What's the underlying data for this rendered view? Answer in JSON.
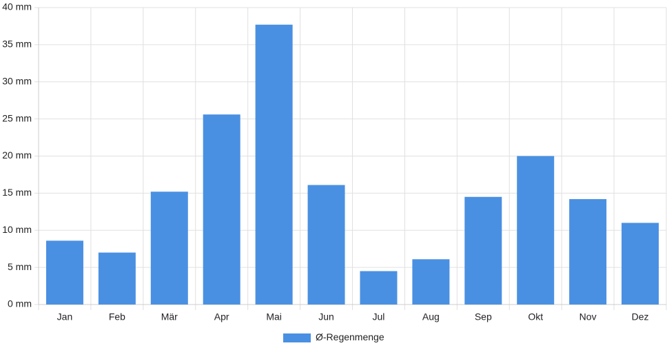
{
  "chart_data": {
    "type": "bar",
    "categories": [
      "Jan",
      "Feb",
      "Mär",
      "Apr",
      "Mai",
      "Jun",
      "Jul",
      "Aug",
      "Sep",
      "Okt",
      "Nov",
      "Dez"
    ],
    "series": [
      {
        "name": "Ø-Regenmenge",
        "color": "#4a90e2",
        "values": [
          8.6,
          7.0,
          15.2,
          25.6,
          37.7,
          16.1,
          4.5,
          6.1,
          14.5,
          20.0,
          14.2,
          11.0
        ]
      }
    ],
    "ylim": [
      0,
      40
    ],
    "yticks": [
      {
        "value": 0,
        "label": "0 mm"
      },
      {
        "value": 5,
        "label": "5 mm"
      },
      {
        "value": 10,
        "label": "10 mm"
      },
      {
        "value": 15,
        "label": "15 mm"
      },
      {
        "value": 20,
        "label": "20 mm"
      },
      {
        "value": 25,
        "label": "25 mm"
      },
      {
        "value": 30,
        "label": "30 mm"
      },
      {
        "value": 35,
        "label": "35 mm"
      },
      {
        "value": 40,
        "label": "40 mm"
      }
    ],
    "grid": true,
    "legend": "bottom"
  }
}
